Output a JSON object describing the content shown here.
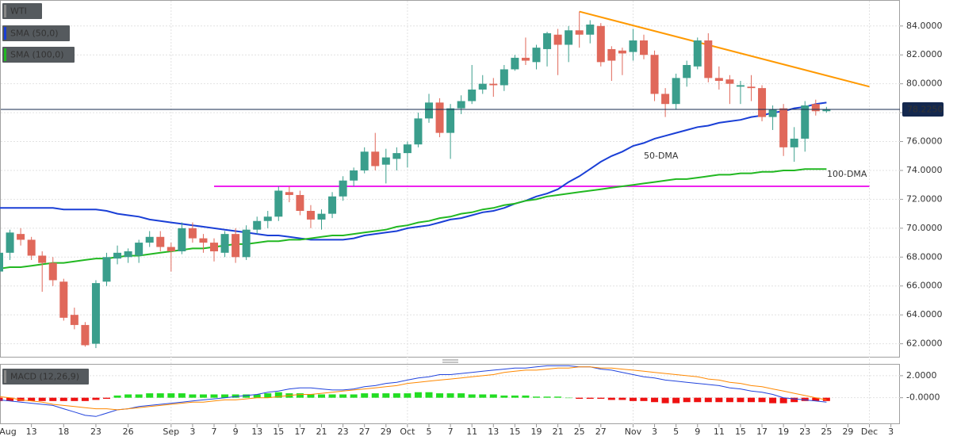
{
  "chart_data": [
    {
      "type": "candlestick",
      "title": "WTI",
      "categories": [
        "Aug",
        null,
        null,
        "13",
        null,
        null,
        "18",
        null,
        null,
        "23",
        null,
        null,
        "26",
        null,
        null,
        null,
        "Sep",
        null,
        "3",
        null,
        "7",
        null,
        "9",
        null,
        "13",
        null,
        "15",
        null,
        "17",
        null,
        "21",
        null,
        "23",
        null,
        "27",
        null,
        "29",
        null,
        "Oct",
        null,
        "5",
        null,
        "7",
        null,
        "11",
        null,
        "13",
        null,
        "15",
        null,
        "19",
        null,
        "21",
        null,
        "25",
        null,
        "27",
        null,
        null,
        "Nov",
        null,
        "3",
        null,
        "5",
        null,
        "9",
        null,
        "11",
        null,
        "15",
        null,
        "17",
        null,
        "19",
        null,
        "23",
        null,
        "25",
        null,
        "29",
        null,
        "Dec",
        null,
        "3"
      ],
      "open": [
        67.0,
        68.3,
        69.6,
        69.2,
        68.1,
        67.6,
        66.3,
        64.0,
        63.3,
        62.0,
        66.3,
        67.9,
        68.0,
        68.1,
        69.0,
        69.4,
        68.7,
        68.4,
        70.0,
        69.3,
        69.0,
        68.3,
        69.6,
        68.0,
        69.9,
        70.5,
        70.8,
        72.5,
        72.3,
        71.2,
        70.6,
        71.0,
        72.2,
        73.3,
        74.0,
        75.3,
        74.4,
        74.8,
        75.2,
        75.8,
        77.6,
        78.7,
        76.6,
        78.3,
        78.8,
        79.6,
        80.0,
        79.9,
        81.0,
        81.8,
        81.5,
        82.4,
        83.4,
        82.7,
        83.7,
        83.4,
        84.0,
        82.4,
        82.3,
        82.2,
        83.0,
        82.0,
        79.3,
        78.6,
        80.4,
        81.2,
        83.0,
        80.4,
        80.3,
        79.8,
        79.8,
        79.7,
        77.7,
        78.3,
        75.6,
        76.2,
        78.6,
        78.1,
        null,
        null,
        null,
        null,
        null,
        null
      ],
      "high": [
        68.5,
        69.9,
        70.0,
        69.4,
        68.4,
        68.0,
        66.5,
        64.5,
        63.5,
        66.4,
        68.3,
        68.8,
        68.6,
        69.2,
        69.8,
        69.8,
        69.0,
        70.4,
        70.4,
        69.6,
        69.3,
        69.8,
        70.0,
        70.2,
        70.8,
        71.2,
        72.9,
        72.9,
        72.6,
        71.6,
        71.3,
        72.5,
        73.6,
        74.2,
        75.6,
        76.6,
        75.5,
        75.6,
        76.0,
        78.0,
        79.3,
        79.0,
        78.6,
        79.2,
        81.3,
        80.6,
        80.4,
        81.3,
        82.0,
        83.2,
        82.7,
        83.6,
        83.8,
        84.0,
        85.0,
        84.4,
        84.2,
        82.6,
        82.5,
        83.8,
        83.4,
        82.3,
        79.7,
        80.7,
        81.6,
        83.2,
        83.5,
        81.2,
        80.6,
        80.2,
        80.6,
        79.9,
        78.5,
        78.6,
        77.0,
        78.8,
        78.9,
        78.4,
        null,
        null,
        null,
        null,
        null,
        null
      ],
      "low": [
        66.5,
        67.8,
        68.8,
        67.8,
        65.6,
        66.0,
        63.6,
        63.0,
        61.8,
        61.7,
        66.0,
        67.5,
        67.6,
        67.6,
        68.7,
        68.4,
        67.0,
        68.2,
        69.0,
        68.3,
        67.7,
        68.0,
        67.6,
        67.8,
        69.6,
        70.0,
        70.5,
        71.8,
        70.9,
        70.0,
        69.9,
        70.7,
        71.9,
        72.9,
        73.8,
        74.0,
        73.1,
        74.0,
        74.2,
        75.6,
        77.3,
        76.3,
        74.8,
        77.9,
        78.6,
        79.3,
        79.1,
        79.5,
        80.9,
        81.3,
        81.0,
        81.2,
        80.6,
        81.5,
        82.5,
        82.8,
        81.2,
        80.2,
        80.6,
        81.6,
        81.7,
        78.8,
        77.7,
        78.2,
        79.8,
        81.0,
        80.1,
        79.6,
        78.6,
        78.6,
        78.8,
        77.4,
        76.8,
        75.0,
        74.6,
        75.3,
        77.8,
        78.0,
        null,
        null,
        null,
        null,
        null,
        null
      ],
      "close": [
        68.3,
        69.7,
        69.2,
        68.1,
        67.6,
        66.4,
        63.8,
        63.3,
        61.9,
        66.2,
        68.0,
        68.3,
        68.4,
        69.0,
        69.4,
        68.7,
        68.4,
        70.0,
        69.3,
        69.0,
        68.4,
        69.6,
        68.0,
        69.9,
        70.5,
        70.8,
        72.6,
        72.3,
        71.2,
        70.6,
        71.0,
        72.2,
        73.3,
        74.0,
        75.3,
        74.3,
        74.9,
        75.2,
        75.8,
        77.6,
        78.7,
        76.6,
        78.3,
        78.8,
        79.6,
        80.0,
        79.9,
        81.0,
        81.8,
        81.6,
        82.5,
        83.5,
        82.7,
        83.7,
        83.4,
        84.1,
        81.5,
        81.6,
        82.1,
        83.0,
        82.0,
        79.3,
        78.6,
        80.4,
        81.3,
        83.0,
        80.4,
        80.2,
        80.0,
        79.9,
        79.7,
        77.7,
        78.2,
        75.6,
        76.2,
        78.5,
        78.1,
        78.2,
        null,
        null,
        null,
        null,
        null,
        null
      ],
      "up_color": "#3a9e8c",
      "down_color": "#e0685a",
      "title_color": "#888888",
      "series": [
        {
          "name": "SMA (50,0)",
          "color": "#1a3fd6",
          "values": [
            71.4,
            71.4,
            71.4,
            71.4,
            71.4,
            71.4,
            71.3,
            71.3,
            71.3,
            71.3,
            71.2,
            71.0,
            70.9,
            70.8,
            70.6,
            70.5,
            70.4,
            70.3,
            70.2,
            70.1,
            70.0,
            69.9,
            69.8,
            69.7,
            69.6,
            69.5,
            69.5,
            69.4,
            69.3,
            69.2,
            69.2,
            69.2,
            69.2,
            69.3,
            69.5,
            69.6,
            69.7,
            69.8,
            70.0,
            70.1,
            70.2,
            70.4,
            70.6,
            70.7,
            70.9,
            71.1,
            71.2,
            71.4,
            71.7,
            71.9,
            72.2,
            72.4,
            72.7,
            73.2,
            73.6,
            74.1,
            74.6,
            75.0,
            75.3,
            75.7,
            75.9,
            76.2,
            76.4,
            76.6,
            76.8,
            77.0,
            77.1,
            77.3,
            77.4,
            77.5,
            77.7,
            77.8,
            78.0,
            78.1,
            78.3,
            78.4,
            78.6,
            78.7,
            null,
            null,
            null,
            null,
            null,
            null
          ]
        },
        {
          "name": "SMA (100,0)",
          "color": "#22b822",
          "values": [
            67.2,
            67.3,
            67.3,
            67.4,
            67.5,
            67.6,
            67.6,
            67.7,
            67.8,
            67.9,
            67.9,
            68.0,
            68.1,
            68.1,
            68.2,
            68.3,
            68.4,
            68.5,
            68.6,
            68.6,
            68.7,
            68.8,
            68.9,
            68.9,
            69.0,
            69.1,
            69.1,
            69.2,
            69.2,
            69.3,
            69.4,
            69.5,
            69.5,
            69.6,
            69.7,
            69.8,
            69.9,
            70.1,
            70.2,
            70.4,
            70.5,
            70.7,
            70.8,
            71.0,
            71.1,
            71.3,
            71.4,
            71.6,
            71.7,
            71.9,
            72.0,
            72.2,
            72.3,
            72.4,
            72.5,
            72.6,
            72.7,
            72.8,
            72.9,
            73.0,
            73.1,
            73.2,
            73.3,
            73.4,
            73.4,
            73.5,
            73.6,
            73.7,
            73.7,
            73.8,
            73.8,
            73.9,
            73.9,
            74.0,
            74.0,
            74.1,
            74.1,
            74.1,
            null,
            null,
            null,
            null,
            null,
            null
          ]
        }
      ],
      "lines": [
        {
          "color": "#ff9900",
          "x": [
            54,
            81
          ],
          "values": [
            85.0,
            79.8
          ]
        },
        {
          "color": "#ee22ee",
          "x": [
            20,
            81
          ],
          "values": [
            72.9,
            72.9
          ]
        }
      ],
      "annotations": [
        {
          "text": "50-DMA",
          "color": "#7a78e0"
        },
        {
          "text": "100-DMA",
          "color": "#22b822"
        }
      ],
      "last_price": {
        "value": 78.225,
        "label": "78.2250",
        "color": "#14284e"
      },
      "ylim": [
        61.1,
        85.8
      ],
      "yticks": [
        {
          "value": 62,
          "label": "62.0000"
        },
        {
          "value": 64,
          "label": "64.0000"
        },
        {
          "value": 66,
          "label": "66.0000"
        },
        {
          "value": 68,
          "label": "68.0000"
        },
        {
          "value": 70,
          "label": "70.0000"
        },
        {
          "value": 72,
          "label": "72.0000"
        },
        {
          "value": 74,
          "label": "74.0000"
        },
        {
          "value": 76,
          "label": "76.0000"
        },
        {
          "value": 78,
          "label": "78.0000"
        },
        {
          "value": 80,
          "label": "80.0000"
        },
        {
          "value": 82,
          "label": "82.0000"
        },
        {
          "value": 84,
          "label": "84.0000"
        }
      ],
      "grid": true
    },
    {
      "type": "macd",
      "title": "MACD (12,26,9)",
      "title_color": "#888888",
      "series": [
        {
          "kind": "line",
          "color": "#2244dd",
          "values": [
            -0.2,
            -0.3,
            -0.4,
            -0.5,
            -0.6,
            -0.7,
            -1.0,
            -1.3,
            -1.6,
            -1.7,
            -1.4,
            -1.1,
            -1.0,
            -0.8,
            -0.7,
            -0.6,
            -0.5,
            -0.4,
            -0.3,
            -0.2,
            -0.1,
            0.0,
            0.1,
            0.2,
            0.3,
            0.5,
            0.6,
            0.8,
            0.9,
            0.9,
            0.8,
            0.7,
            0.7,
            0.8,
            1.0,
            1.1,
            1.3,
            1.4,
            1.6,
            1.8,
            1.9,
            2.1,
            2.1,
            2.2,
            2.3,
            2.4,
            2.5,
            2.6,
            2.7,
            2.7,
            2.8,
            2.9,
            2.9,
            2.9,
            2.8,
            2.8,
            2.6,
            2.5,
            2.3,
            2.1,
            1.9,
            1.8,
            1.6,
            1.5,
            1.4,
            1.3,
            1.2,
            1.1,
            0.9,
            0.8,
            0.6,
            0.5,
            0.3,
            0.0,
            -0.1,
            -0.2,
            -0.3,
            -0.4,
            null,
            null,
            null,
            null,
            null,
            null
          ]
        },
        {
          "kind": "line",
          "color": "#ff8800",
          "values": [
            0.1,
            0.0,
            -0.2,
            -0.3,
            -0.4,
            -0.6,
            -0.7,
            -0.8,
            -0.9,
            -1.0,
            -1.0,
            -1.1,
            -1.0,
            -0.9,
            -0.8,
            -0.7,
            -0.6,
            -0.5,
            -0.4,
            -0.4,
            -0.3,
            -0.2,
            -0.2,
            -0.1,
            0.0,
            0.0,
            0.1,
            0.2,
            0.3,
            0.3,
            0.4,
            0.5,
            0.6,
            0.7,
            0.8,
            0.9,
            1.0,
            1.1,
            1.3,
            1.4,
            1.5,
            1.6,
            1.7,
            1.8,
            1.9,
            2.0,
            2.1,
            2.3,
            2.4,
            2.5,
            2.5,
            2.6,
            2.7,
            2.7,
            2.8,
            2.8,
            2.7,
            2.7,
            2.6,
            2.5,
            2.4,
            2.3,
            2.2,
            2.1,
            2.0,
            1.9,
            1.7,
            1.6,
            1.4,
            1.3,
            1.1,
            1.0,
            0.8,
            0.6,
            0.4,
            0.2,
            0.0,
            -0.2,
            null,
            null,
            null,
            null,
            null,
            null
          ]
        },
        {
          "kind": "histogram",
          "positive_color": "#22dd22",
          "negative_color": "#ee1111",
          "values": [
            -0.3,
            -0.3,
            -0.3,
            -0.3,
            -0.3,
            -0.3,
            -0.3,
            -0.3,
            -0.3,
            -0.2,
            -0.1,
            0.2,
            0.3,
            0.3,
            0.4,
            0.4,
            0.4,
            0.4,
            0.3,
            0.3,
            0.3,
            0.3,
            0.3,
            0.3,
            0.3,
            0.4,
            0.5,
            0.4,
            0.4,
            0.3,
            0.3,
            0.3,
            0.3,
            0.3,
            0.4,
            0.4,
            0.4,
            0.4,
            0.4,
            0.5,
            0.5,
            0.4,
            0.4,
            0.4,
            0.3,
            0.3,
            0.3,
            0.2,
            0.2,
            0.2,
            0.1,
            0.1,
            0.1,
            0.0,
            -0.1,
            -0.1,
            -0.1,
            -0.2,
            -0.2,
            -0.3,
            -0.3,
            -0.4,
            -0.5,
            -0.5,
            -0.4,
            -0.4,
            -0.4,
            -0.4,
            -0.4,
            -0.4,
            -0.4,
            -0.4,
            -0.5,
            -0.5,
            -0.4,
            -0.3,
            -0.3,
            -0.3,
            null,
            null,
            null,
            null,
            null,
            null
          ]
        }
      ],
      "ylim": [
        -2.4,
        3.0
      ],
      "yticks": [
        {
          "value": 2,
          "label": "2.0000"
        },
        {
          "value": 0,
          "label": "-0.0000"
        }
      ],
      "grid": true
    }
  ]
}
